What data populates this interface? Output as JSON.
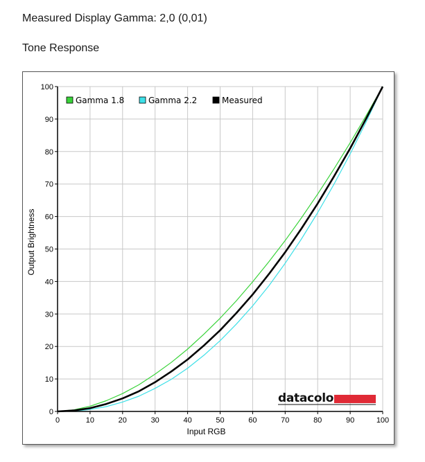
{
  "header": {
    "measured_gamma": "Measured Display Gamma: 2,0 (0,01)",
    "section_title": "Tone Response"
  },
  "logo": {
    "text": "datacolor",
    "bar_color": "#e02a36"
  },
  "colors": {
    "gamma18": "#39d339",
    "gamma22": "#3ee0e8",
    "measured": "#000000",
    "grid": "#c8c8c8"
  },
  "chart_data": {
    "type": "line",
    "title": "",
    "xlabel": "Input RGB",
    "ylabel": "Output Brightness",
    "xlim": [
      0,
      100
    ],
    "ylim": [
      0,
      100
    ],
    "xticks": [
      0,
      10,
      20,
      30,
      40,
      50,
      60,
      70,
      80,
      90,
      100
    ],
    "yticks": [
      0,
      10,
      20,
      30,
      40,
      50,
      60,
      70,
      80,
      90,
      100
    ],
    "grid": true,
    "legend_position": "top-left",
    "x": [
      0,
      5,
      10,
      15,
      20,
      25,
      30,
      35,
      40,
      45,
      50,
      55,
      60,
      65,
      70,
      75,
      80,
      85,
      90,
      95,
      100
    ],
    "series": [
      {
        "name": "Gamma 1.8",
        "color": "#39d339",
        "values": [
          0,
          0.5,
          1.6,
          3.3,
          5.5,
          8.2,
          11.5,
          15.1,
          19.2,
          23.8,
          28.7,
          34.1,
          39.9,
          46.1,
          52.6,
          59.6,
          66.9,
          74.6,
          82.7,
          91.2,
          100
        ]
      },
      {
        "name": "Gamma 2.2",
        "color": "#3ee0e8",
        "values": [
          0,
          0.1,
          0.6,
          1.5,
          2.9,
          4.7,
          7.1,
          9.9,
          13.3,
          17.3,
          21.8,
          26.9,
          32.5,
          38.7,
          45.6,
          53.1,
          61.2,
          69.9,
          79.3,
          89.3,
          100
        ]
      },
      {
        "name": "Measured",
        "color": "#000000",
        "values": [
          0,
          0.3,
          1.0,
          2.3,
          4.0,
          6.2,
          9.0,
          12.3,
          16.0,
          20.3,
          25.0,
          30.3,
          36.0,
          42.3,
          49.0,
          56.3,
          64.0,
          72.3,
          81.0,
          90.3,
          100
        ]
      }
    ]
  }
}
